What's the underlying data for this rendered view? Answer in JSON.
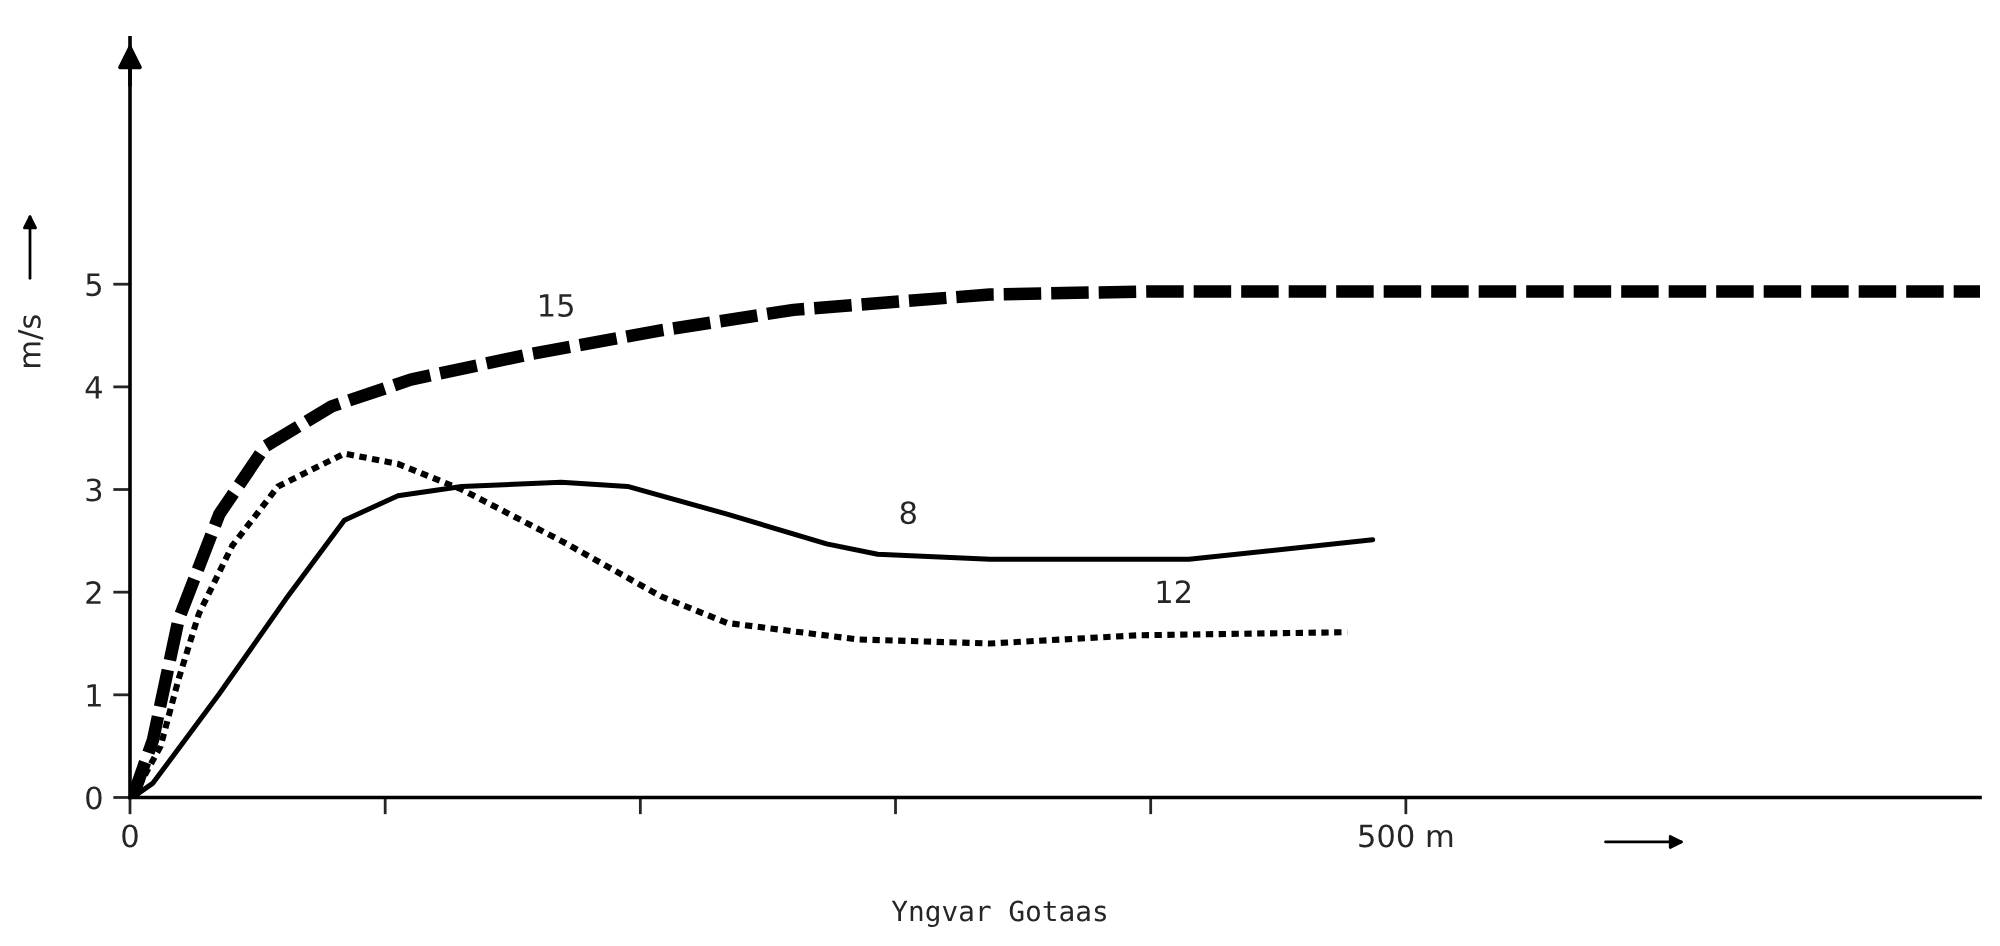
{
  "chart_data": {
    "type": "line",
    "ylabel": "m/s",
    "xlim": [
      0,
      725
    ],
    "ylim": [
      0,
      7.4
    ],
    "xticks": [
      0,
      {
        "value": 100,
        "label": null
      },
      {
        "value": 200,
        "label": null
      },
      {
        "value": 300,
        "label": null
      },
      {
        "value": 400,
        "label": null
      },
      {
        "value": 500,
        "label": "500 m"
      }
    ],
    "yticks": [
      0,
      1,
      2,
      3,
      4,
      5
    ],
    "grid": false,
    "legend": false,
    "series": [
      {
        "color": "#000000",
        "line_style": "dashed",
        "x": [
          1,
          9,
          19,
          35,
          53,
          79,
          110,
          157,
          208,
          260,
          337,
          400,
          500,
          600,
          725
        ],
        "values": [
          0,
          0.56,
          1.73,
          2.76,
          3.42,
          3.81,
          4.07,
          4.32,
          4.55,
          4.75,
          4.9,
          4.93,
          4.93,
          4.93,
          4.93
        ]
      },
      {
        "color": "#000000",
        "line_style": "dotted",
        "x": [
          1,
          12,
          19,
          27,
          40,
          58,
          84,
          105,
          130,
          169,
          208,
          234,
          285,
          337,
          395,
          477
        ],
        "values": [
          0,
          0.5,
          1.15,
          1.79,
          2.45,
          3.03,
          3.35,
          3.25,
          3.0,
          2.5,
          1.96,
          1.7,
          1.54,
          1.5,
          1.58,
          1.61
        ]
      },
      {
        "color": "#000000",
        "line_style": "solid",
        "x": [
          1,
          9,
          35,
          61,
          84,
          105,
          130,
          169,
          195,
          234,
          273,
          293,
          337,
          415,
          487
        ],
        "values": [
          0,
          0.14,
          1.01,
          1.93,
          2.7,
          2.94,
          3.03,
          3.07,
          3.03,
          2.76,
          2.47,
          2.37,
          2.32,
          2.32,
          2.51
        ]
      }
    ],
    "annotations": [
      {
        "text": "15",
        "x": 167,
        "y": 4.38
      },
      {
        "text": "8",
        "x": 305,
        "y": 2.36
      },
      {
        "text": "12",
        "x": 409,
        "y": 1.59
      },
      "Yngvar Gotaas"
    ]
  }
}
